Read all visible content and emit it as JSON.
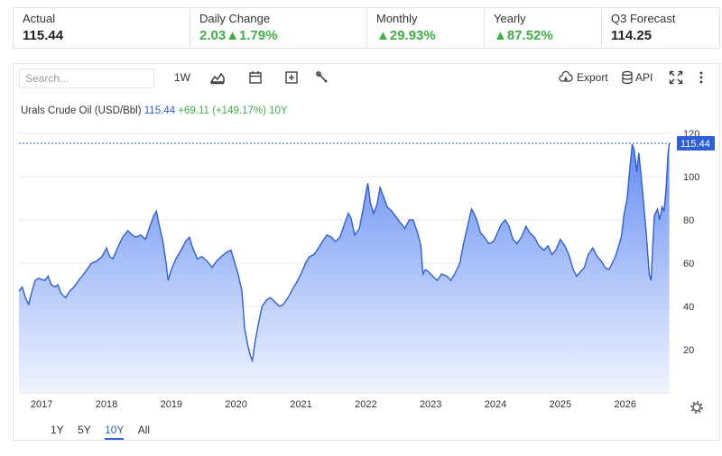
{
  "stats": [
    {
      "label": "Actual",
      "value": "115.44",
      "up": false
    },
    {
      "label": "Daily Change",
      "value": "2.03▲1.79%",
      "up": true
    },
    {
      "label": "Monthly",
      "value": "▲29.93%",
      "up": true
    },
    {
      "label": "Yearly",
      "value": "▲87.52%",
      "up": true
    },
    {
      "label": "Q3 Forecast",
      "value": "114.25",
      "up": false
    }
  ],
  "toolbar": {
    "search_placeholder": "Search...",
    "interval": "1W",
    "export_label": "Export",
    "api_label": "API"
  },
  "legend": {
    "name": "Urals Crude Oil (USD/Bbl)",
    "value": "115.44",
    "change": "+69.11",
    "pct": "(+149.17%)",
    "range": "10Y"
  },
  "ranges": [
    {
      "label": "1Y",
      "active": false
    },
    {
      "label": "5Y",
      "active": false
    },
    {
      "label": "10Y",
      "active": true
    },
    {
      "label": "All",
      "active": false
    }
  ],
  "icons": [
    "area-chart-icon",
    "calendar-icon",
    "compare-plus-icon",
    "wrench-icon",
    "cloud-download-icon",
    "database-icon",
    "fullscreen-icon",
    "more-vertical-icon",
    "gear-icon"
  ],
  "colors": {
    "line": "#2e5fd6",
    "fill_top": "#5b86f0",
    "fill_bottom": "#eef3ff",
    "up": "#3fae49",
    "badge": "#2e5fd6"
  },
  "chart_data": {
    "type": "area",
    "title": "Urals Crude Oil (USD/Bbl)",
    "xlabel": "",
    "ylabel": "",
    "x_ticks": [
      "2017",
      "2018",
      "2019",
      "2020",
      "2021",
      "2022",
      "2023",
      "2024",
      "2025",
      "2026"
    ],
    "y_ticks": [
      20,
      40,
      60,
      80,
      100,
      120
    ],
    "ylim": [
      0,
      125
    ],
    "xlim": [
      2016.7,
      2026.75
    ],
    "last_value_label": "115.44",
    "grid": true,
    "series": [
      {
        "name": "Urals Crude Oil (USD/Bbl)",
        "points": [
          [
            2016.7,
            47
          ],
          [
            2016.75,
            49
          ],
          [
            2016.8,
            44
          ],
          [
            2016.85,
            41
          ],
          [
            2016.9,
            47
          ],
          [
            2016.95,
            52
          ],
          [
            2017.0,
            53
          ],
          [
            2017.1,
            52
          ],
          [
            2017.15,
            54
          ],
          [
            2017.2,
            50
          ],
          [
            2017.25,
            49
          ],
          [
            2017.3,
            50
          ],
          [
            2017.35,
            46
          ],
          [
            2017.42,
            44
          ],
          [
            2017.48,
            47
          ],
          [
            2017.55,
            49
          ],
          [
            2017.62,
            52
          ],
          [
            2017.7,
            55
          ],
          [
            2017.75,
            57
          ],
          [
            2017.82,
            60
          ],
          [
            2017.9,
            61
          ],
          [
            2017.98,
            63
          ],
          [
            2018.05,
            67
          ],
          [
            2018.1,
            63
          ],
          [
            2018.15,
            62
          ],
          [
            2018.22,
            67
          ],
          [
            2018.3,
            72
          ],
          [
            2018.38,
            75
          ],
          [
            2018.45,
            73
          ],
          [
            2018.5,
            72
          ],
          [
            2018.58,
            73
          ],
          [
            2018.65,
            71
          ],
          [
            2018.72,
            77
          ],
          [
            2018.78,
            82
          ],
          [
            2018.82,
            84
          ],
          [
            2018.86,
            78
          ],
          [
            2018.92,
            70
          ],
          [
            2018.97,
            60
          ],
          [
            2019.0,
            52
          ],
          [
            2019.05,
            57
          ],
          [
            2019.12,
            62
          ],
          [
            2019.2,
            66
          ],
          [
            2019.27,
            70
          ],
          [
            2019.33,
            72
          ],
          [
            2019.38,
            67
          ],
          [
            2019.45,
            62
          ],
          [
            2019.52,
            63
          ],
          [
            2019.6,
            61
          ],
          [
            2019.68,
            58
          ],
          [
            2019.75,
            61
          ],
          [
            2019.82,
            63
          ],
          [
            2019.9,
            65
          ],
          [
            2019.97,
            66
          ],
          [
            2020.02,
            61
          ],
          [
            2020.08,
            55
          ],
          [
            2020.14,
            47
          ],
          [
            2020.18,
            30
          ],
          [
            2020.23,
            22
          ],
          [
            2020.27,
            17
          ],
          [
            2020.3,
            15
          ],
          [
            2020.35,
            25
          ],
          [
            2020.4,
            33
          ],
          [
            2020.45,
            40
          ],
          [
            2020.52,
            43
          ],
          [
            2020.58,
            44
          ],
          [
            2020.65,
            42
          ],
          [
            2020.72,
            40
          ],
          [
            2020.78,
            41
          ],
          [
            2020.85,
            44
          ],
          [
            2020.92,
            48
          ],
          [
            2020.98,
            51
          ],
          [
            2021.05,
            55
          ],
          [
            2021.12,
            60
          ],
          [
            2021.18,
            63
          ],
          [
            2021.25,
            64
          ],
          [
            2021.32,
            67
          ],
          [
            2021.38,
            70
          ],
          [
            2021.45,
            73
          ],
          [
            2021.52,
            72
          ],
          [
            2021.58,
            70
          ],
          [
            2021.65,
            72
          ],
          [
            2021.72,
            78
          ],
          [
            2021.78,
            83
          ],
          [
            2021.82,
            81
          ],
          [
            2021.88,
            73
          ],
          [
            2021.95,
            76
          ],
          [
            2022.0,
            84
          ],
          [
            2022.05,
            92
          ],
          [
            2022.08,
            97
          ],
          [
            2022.12,
            88
          ],
          [
            2022.17,
            83
          ],
          [
            2022.22,
            87
          ],
          [
            2022.27,
            95
          ],
          [
            2022.32,
            91
          ],
          [
            2022.38,
            86
          ],
          [
            2022.45,
            84
          ],
          [
            2022.5,
            82
          ],
          [
            2022.55,
            80
          ],
          [
            2022.6,
            78
          ],
          [
            2022.65,
            76
          ],
          [
            2022.72,
            80
          ],
          [
            2022.78,
            80
          ],
          [
            2022.85,
            74
          ],
          [
            2022.9,
            68
          ],
          [
            2022.93,
            55
          ],
          [
            2022.97,
            57
          ],
          [
            2023.02,
            56
          ],
          [
            2023.08,
            54
          ],
          [
            2023.15,
            52
          ],
          [
            2023.22,
            55
          ],
          [
            2023.3,
            54
          ],
          [
            2023.36,
            52
          ],
          [
            2023.42,
            55
          ],
          [
            2023.5,
            60
          ],
          [
            2023.55,
            68
          ],
          [
            2023.62,
            77
          ],
          [
            2023.68,
            85
          ],
          [
            2023.72,
            83
          ],
          [
            2023.76,
            80
          ],
          [
            2023.82,
            74
          ],
          [
            2023.88,
            72
          ],
          [
            2023.95,
            69
          ],
          [
            2024.02,
            70
          ],
          [
            2024.08,
            74
          ],
          [
            2024.14,
            78
          ],
          [
            2024.2,
            80
          ],
          [
            2024.26,
            77
          ],
          [
            2024.32,
            71
          ],
          [
            2024.38,
            69
          ],
          [
            2024.45,
            72
          ],
          [
            2024.52,
            77
          ],
          [
            2024.58,
            74
          ],
          [
            2024.65,
            72
          ],
          [
            2024.72,
            68
          ],
          [
            2024.8,
            66
          ],
          [
            2024.86,
            68
          ],
          [
            2024.92,
            64
          ],
          [
            2024.98,
            66
          ],
          [
            2025.05,
            71
          ],
          [
            2025.12,
            68
          ],
          [
            2025.18,
            64
          ],
          [
            2025.25,
            57
          ],
          [
            2025.3,
            54
          ],
          [
            2025.36,
            56
          ],
          [
            2025.42,
            58
          ],
          [
            2025.48,
            64
          ],
          [
            2025.55,
            67
          ],
          [
            2025.62,
            63
          ],
          [
            2025.68,
            61
          ],
          [
            2025.74,
            58
          ],
          [
            2025.8,
            57
          ],
          [
            2025.85,
            60
          ],
          [
            2025.9,
            63
          ],
          [
            2025.95,
            68
          ],
          [
            2025.99,
            72
          ],
          [
            2026.03,
            82
          ],
          [
            2026.08,
            90
          ],
          [
            2026.12,
            103
          ],
          [
            2026.16,
            115
          ],
          [
            2026.19,
            112
          ],
          [
            2026.23,
            102
          ],
          [
            2026.26,
            111
          ],
          [
            2026.3,
            99
          ],
          [
            2026.34,
            86
          ],
          [
            2026.38,
            72
          ],
          [
            2026.42,
            55
          ],
          [
            2026.45,
            52
          ],
          [
            2026.5,
            82
          ],
          [
            2026.55,
            85
          ],
          [
            2026.58,
            80
          ],
          [
            2026.62,
            86
          ],
          [
            2026.65,
            84
          ],
          [
            2026.68,
            94
          ],
          [
            2026.71,
            110
          ],
          [
            2026.73,
            115.44
          ]
        ]
      }
    ]
  }
}
